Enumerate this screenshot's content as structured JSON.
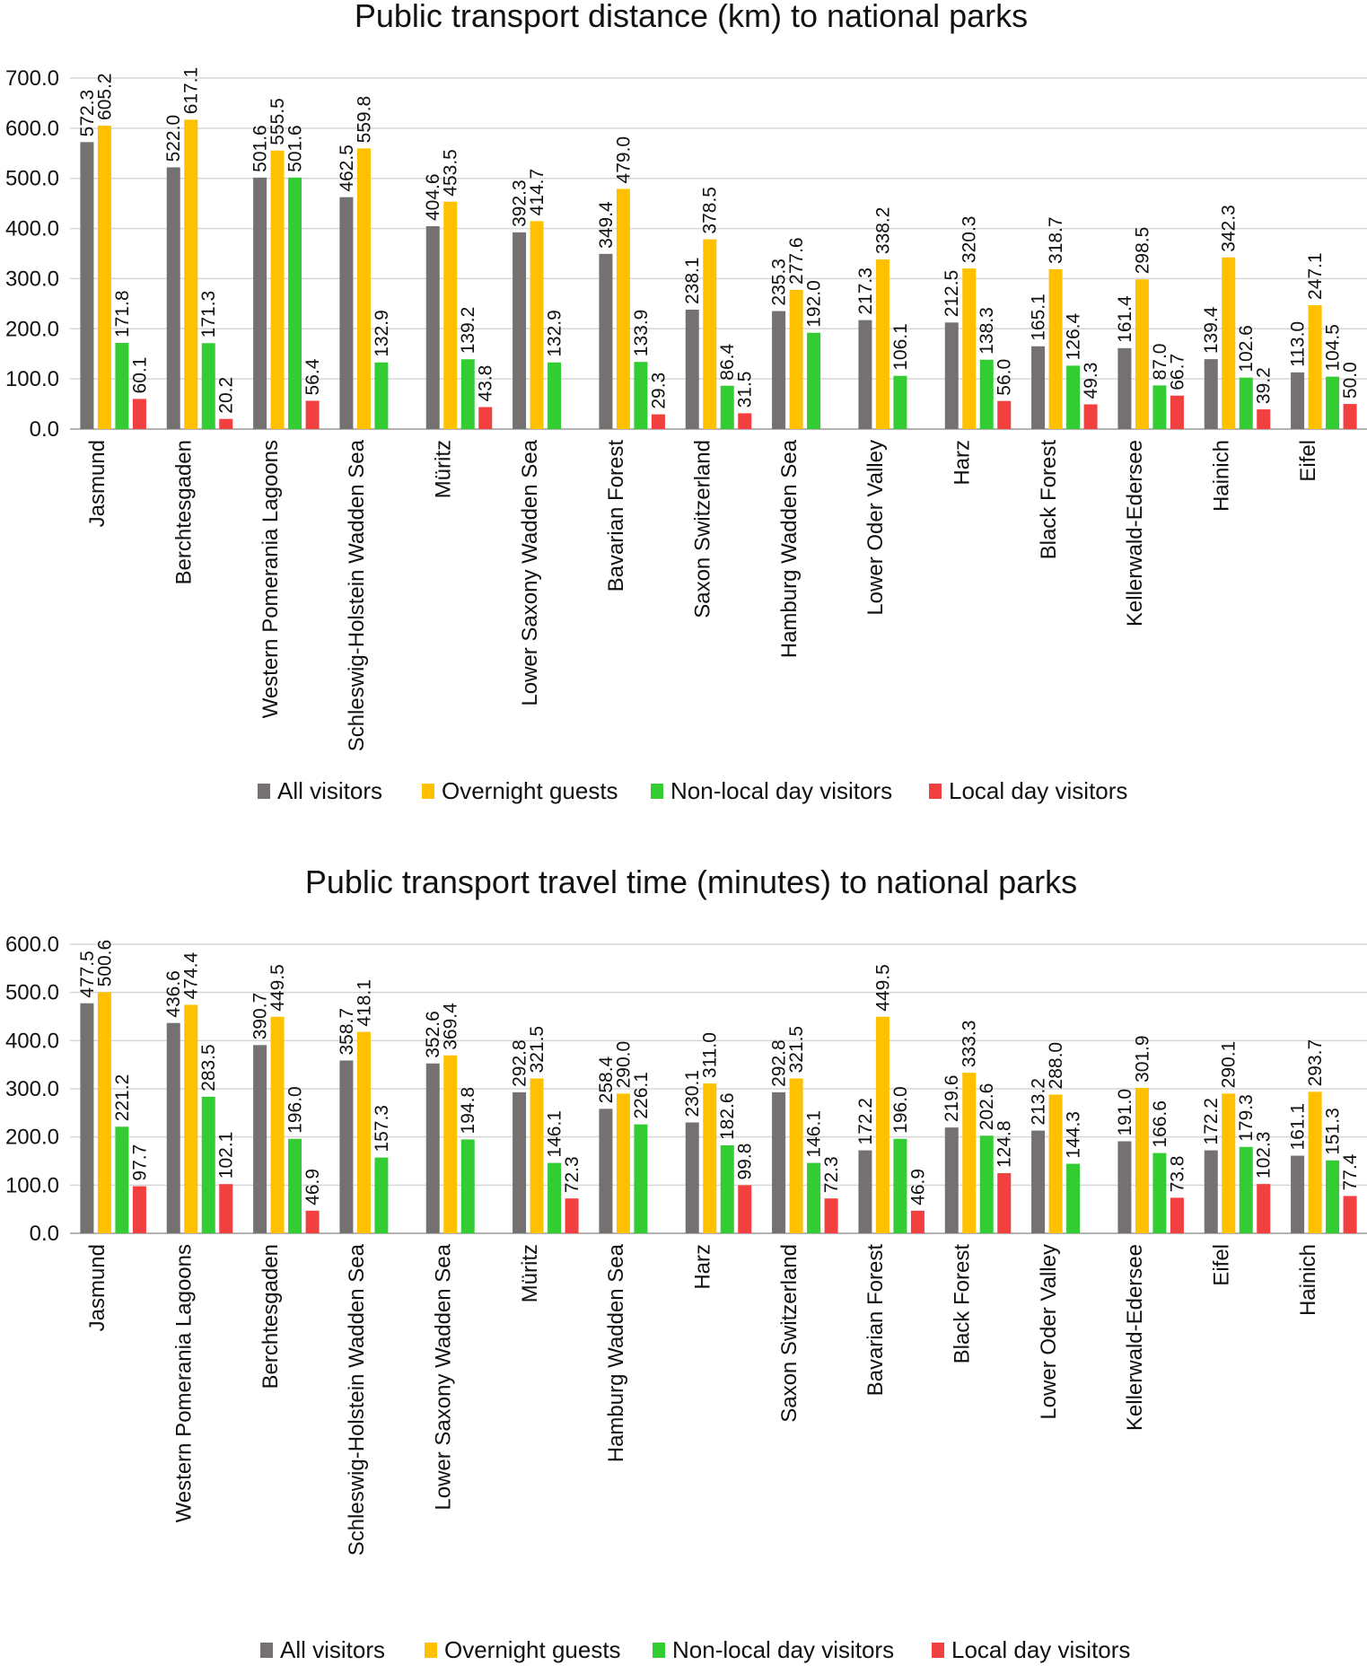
{
  "colors": {
    "all": "#767171",
    "overnight": "#FFC000",
    "nonlocal": "#33CC33",
    "local": "#F23F3F"
  },
  "chart_data": [
    {
      "type": "bar",
      "title": "Public transport distance (km) to national parks",
      "xlabel": "",
      "ylabel": "",
      "ylim": [
        0,
        700
      ],
      "yticks": [
        "0.0",
        "100.0",
        "200.0",
        "300.0",
        "400.0",
        "500.0",
        "600.0",
        "700.0"
      ],
      "grid": true,
      "legend_position": "bottom",
      "categories": [
        "Jasmund",
        "Berchtesgaden",
        "Western Pomerania Lagoons",
        "Schleswig-Holstein Wadden Sea",
        "Müritz",
        "Lower Saxony Wadden Sea",
        "Bavarian Forest",
        "Saxon Switzerland",
        "Hamburg Wadden Sea",
        "Lower Oder Valley",
        "Harz",
        "Black Forest",
        "Kellerwald-Edersee",
        "Hainich",
        "Eifel"
      ],
      "series": [
        {
          "name": "All visitors",
          "values": [
            572.3,
            522.0,
            501.6,
            462.5,
            404.6,
            392.3,
            349.4,
            238.1,
            235.3,
            217.3,
            212.5,
            165.1,
            161.4,
            139.4,
            113.0
          ],
          "labels": [
            "572.3",
            "522.0",
            "501.6",
            "462.5",
            "404.6",
            "392.3",
            "349.4",
            "238.1",
            "235.3",
            "217.3",
            "212.5",
            "165.1",
            "161.4",
            "139.4",
            "113.0"
          ]
        },
        {
          "name": "Overnight guests",
          "values": [
            605.2,
            617.1,
            555.5,
            559.8,
            453.5,
            414.7,
            479.0,
            378.5,
            277.6,
            338.2,
            320.3,
            318.7,
            298.5,
            342.3,
            247.1
          ],
          "labels": [
            "605.2",
            "617.1",
            "555.5",
            "559.8",
            "453.5",
            "414.7",
            "479.0",
            "378.5",
            "277.6",
            "338.2",
            "320.3",
            "318.7",
            "298.5",
            "342.3",
            "247.1"
          ]
        },
        {
          "name": "Non-local day visitors",
          "values": [
            171.8,
            171.3,
            501.6,
            132.9,
            139.2,
            132.9,
            133.9,
            86.4,
            192.0,
            106.1,
            138.3,
            126.4,
            87.0,
            102.6,
            104.5
          ],
          "labels": [
            "171.8",
            "171.3",
            "501.6",
            "132.9",
            "139.2",
            "132.9",
            "133.9",
            "86.4",
            "192.0",
            "106.1",
            "138.3",
            "126.4",
            "87.0",
            "102.6",
            "104.5"
          ]
        },
        {
          "name": "Local day visitors",
          "values": [
            60.1,
            20.2,
            56.4,
            null,
            43.8,
            null,
            29.3,
            31.5,
            null,
            null,
            56.0,
            49.3,
            66.7,
            39.2,
            50.0
          ],
          "labels": [
            "60.1",
            "20.2",
            "56.4",
            "",
            "43.8",
            "",
            "29.3",
            "31.5",
            "",
            "",
            "56.0",
            "49.3",
            "66.7",
            "39.2",
            "50.0"
          ]
        }
      ]
    },
    {
      "type": "bar",
      "title": "Public transport travel time (minutes) to national parks",
      "xlabel": "",
      "ylabel": "",
      "ylim": [
        0,
        600
      ],
      "yticks": [
        "0.0",
        "100.0",
        "200.0",
        "300.0",
        "400.0",
        "500.0",
        "600.0"
      ],
      "grid": true,
      "legend_position": "bottom",
      "categories": [
        "Jasmund",
        "Western Pomerania Lagoons",
        "Berchtesgaden",
        "Schleswig-Holstein Wadden Sea",
        "Lower Saxony Wadden Sea",
        "Müritz",
        "Hamburg Wadden Sea",
        "Harz",
        "Saxon Switzerland",
        "Bavarian Forest",
        "Black Forest",
        "Lower Oder Valley",
        "Kellerwald-Edersee",
        "Eifel",
        "Hainich"
      ],
      "series": [
        {
          "name": "All visitors",
          "values": [
            477.5,
            436.6,
            390.7,
            358.7,
            352.6,
            292.8,
            258.4,
            230.1,
            292.8,
            172.2,
            219.6,
            213.2,
            191.0,
            172.2,
            161.1
          ],
          "labels": [
            "477.5",
            "436.6",
            "390.7",
            "358.7",
            "352.6",
            "292.8",
            "258.4",
            "230.1",
            "292.8",
            "172.2",
            "219.6",
            "213.2",
            "191.0",
            "172.2",
            "161.1"
          ]
        },
        {
          "name": "Overnight guests",
          "values": [
            500.6,
            474.4,
            449.5,
            418.1,
            369.4,
            321.5,
            290.0,
            311.0,
            321.5,
            449.5,
            333.3,
            288.0,
            301.9,
            290.1,
            293.7
          ],
          "labels": [
            "500.6",
            "474.4",
            "449.5",
            "418.1",
            "369.4",
            "321.5",
            "290.0",
            "311.0",
            "321.5",
            "449.5",
            "333.3",
            "288.0",
            "301.9",
            "290.1",
            "293.7"
          ]
        },
        {
          "name": "Non-local day visitors",
          "values": [
            221.2,
            283.5,
            196.0,
            157.3,
            194.8,
            146.1,
            226.1,
            182.6,
            146.1,
            196.0,
            202.6,
            144.3,
            166.6,
            179.3,
            151.3
          ],
          "labels": [
            "221.2",
            "283.5",
            "196.0",
            "157.3",
            "194.8",
            "146.1",
            "226.1",
            "182.6",
            "146.1",
            "196.0",
            "202.6",
            "144.3",
            "166.6",
            "179.3",
            "151.3"
          ]
        },
        {
          "name": "Local day visitors",
          "values": [
            97.7,
            102.1,
            46.9,
            null,
            null,
            72.3,
            null,
            99.8,
            72.3,
            46.9,
            124.8,
            null,
            73.8,
            102.3,
            77.4
          ],
          "labels": [
            "97.7",
            "102.1",
            "46.9",
            "",
            "",
            "72.3",
            "",
            "99.8",
            "72.3",
            "46.9",
            "124.8",
            "",
            "73.8",
            "102.3",
            "77.4"
          ]
        }
      ]
    }
  ]
}
